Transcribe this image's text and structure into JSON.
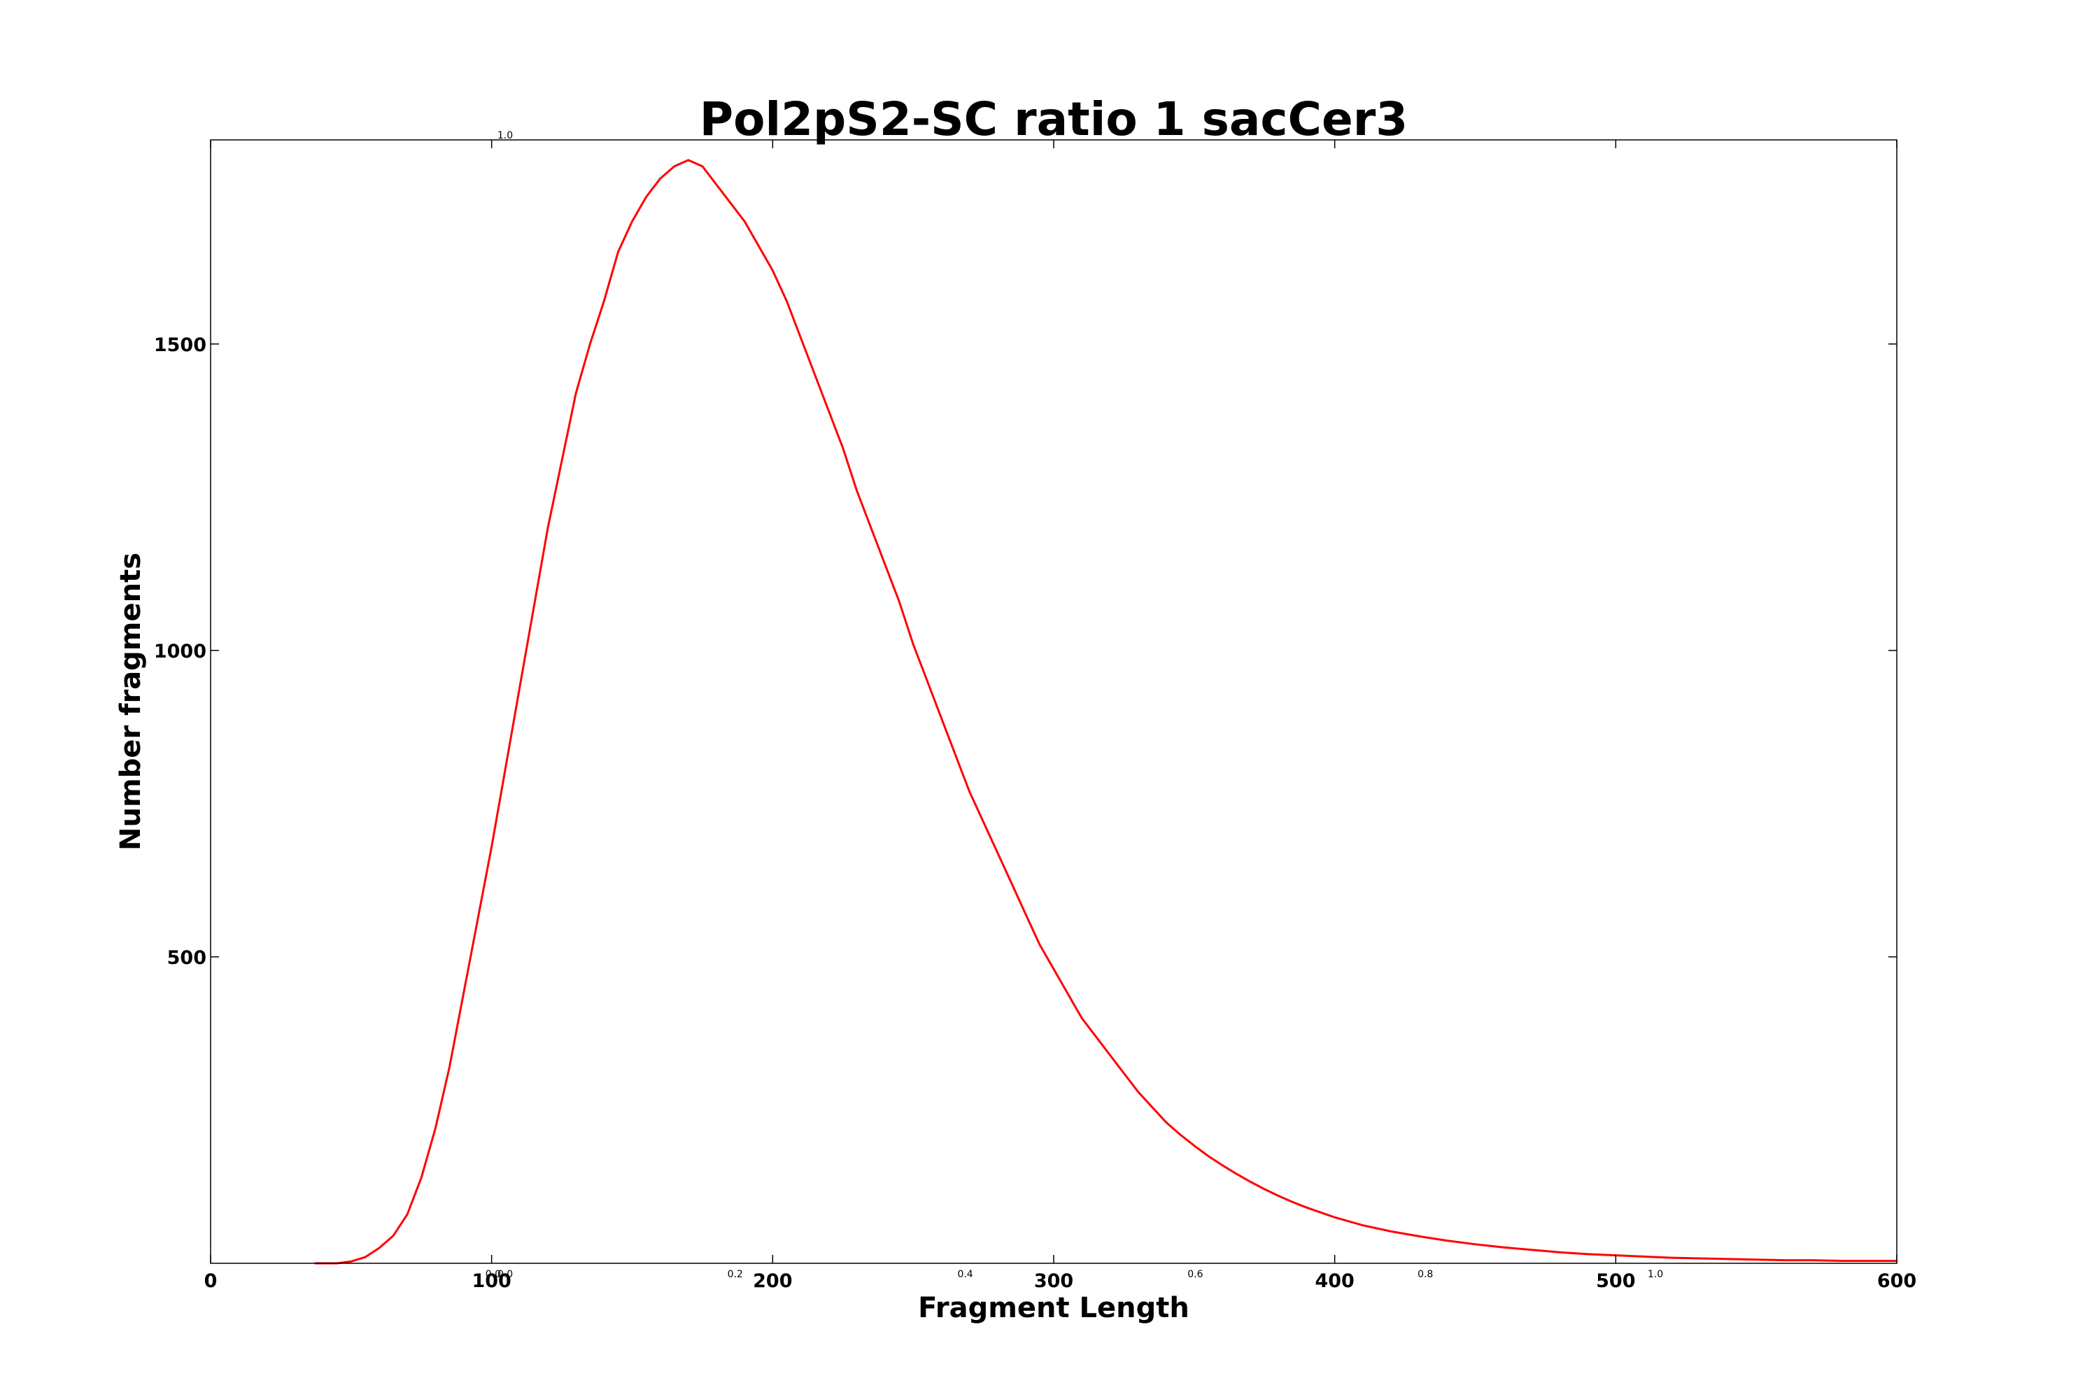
{
  "chart_data": {
    "type": "line",
    "title": "Pol2pS2-SC ratio 1 sacCer3",
    "xlabel": "Fragment Length",
    "ylabel": "Number fragments",
    "xlim": [
      0,
      600
    ],
    "ylim": [
      0,
      1833
    ],
    "x_ticks": [
      "0",
      "100",
      "200",
      "300",
      "400",
      "500",
      "600"
    ],
    "y_ticks": [
      "500",
      "1000",
      "1500"
    ],
    "overlay_ticks": {
      "x": [
        "0.0",
        "0.2",
        "0.4",
        "0.6",
        "0.8",
        "1.0"
      ],
      "x_left_edge": "0.0",
      "y_top": "1.0"
    },
    "grid": false,
    "legend": "none",
    "series": [
      {
        "color": "#ff0000",
        "x": [
          37,
          40,
          45,
          50,
          55,
          60,
          65,
          70,
          75,
          80,
          85,
          90,
          95,
          100,
          105,
          110,
          115,
          120,
          125,
          130,
          135,
          140,
          145,
          150,
          155,
          160,
          165,
          170,
          175,
          180,
          185,
          190,
          195,
          200,
          205,
          210,
          215,
          220,
          225,
          230,
          235,
          240,
          245,
          250,
          255,
          260,
          265,
          270,
          275,
          280,
          285,
          290,
          295,
          300,
          305,
          310,
          315,
          320,
          325,
          330,
          335,
          340,
          345,
          350,
          355,
          360,
          365,
          370,
          375,
          380,
          385,
          390,
          395,
          400,
          410,
          420,
          430,
          440,
          450,
          460,
          470,
          480,
          490,
          500,
          510,
          520,
          530,
          540,
          550,
          560,
          570,
          580,
          590,
          600
        ],
        "y": [
          0,
          0,
          0,
          3,
          10,
          25,
          45,
          80,
          140,
          220,
          320,
          440,
          560,
          680,
          810,
          940,
          1070,
          1200,
          1310,
          1420,
          1500,
          1570,
          1650,
          1700,
          1740,
          1770,
          1790,
          1800,
          1790,
          1760,
          1730,
          1700,
          1660,
          1620,
          1570,
          1510,
          1450,
          1390,
          1330,
          1260,
          1200,
          1140,
          1080,
          1010,
          950,
          890,
          830,
          770,
          720,
          670,
          620,
          570,
          520,
          480,
          440,
          400,
          370,
          340,
          310,
          280,
          255,
          230,
          210,
          192,
          175,
          160,
          146,
          133,
          121,
          110,
          100,
          91,
          83,
          75,
          62,
          52,
          44,
          37,
          31,
          26,
          22,
          18,
          15,
          13,
          11,
          9,
          8,
          7,
          6,
          5,
          5,
          4,
          4,
          4
        ]
      }
    ]
  }
}
